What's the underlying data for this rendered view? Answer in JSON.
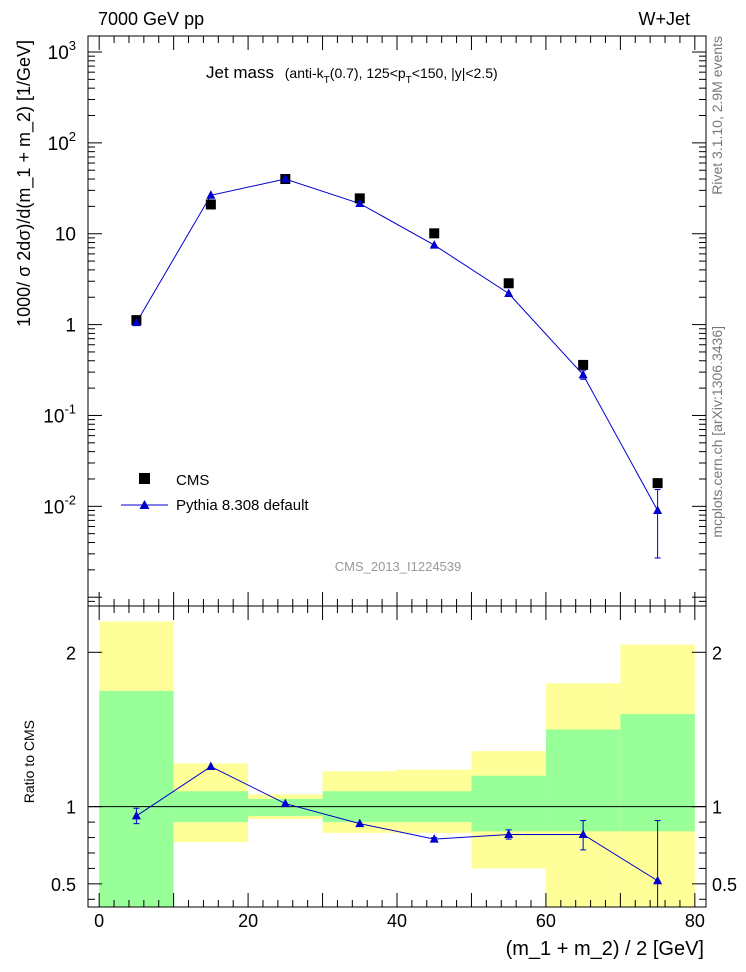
{
  "header": {
    "left": "7000 GeV pp",
    "right": "W+Jet"
  },
  "side_labels": {
    "top": "Rivet 3.1.10,  2.9M events",
    "bottom": "mcplots.cern.ch [arXiv:1306.3436]"
  },
  "analysis_id": "CMS_2013_I1224539",
  "title": {
    "main": "Jet mass",
    "sub_prefix": "(anti-k",
    "sub_T1": "T",
    "sub_mid": "(0.7), 125<p",
    "sub_T2": "T",
    "sub_suffix": "<150, |y|<2.5)"
  },
  "legend": [
    {
      "label": "CMS"
    },
    {
      "label": "Pythia 8.308 default"
    }
  ],
  "colors": {
    "data": "#000000",
    "mc": "#0000cc",
    "band_inner": "#99ff99",
    "band_outer": "#ffff99"
  },
  "chart_data": [
    {
      "type": "scatter",
      "ylabel": "1000/ σ 2dσ)/d(m_1 + m_2) [1/GeV]",
      "xlabel": "",
      "log_y": true,
      "xlim": [
        -1.5,
        81.5
      ],
      "ylim": [
        0.0008,
        1500
      ],
      "y_ticks": [
        "10^-2",
        "10^-1",
        "1",
        "10",
        "10^2",
        "10^3"
      ],
      "x": [
        5,
        15,
        25,
        35,
        45,
        55,
        65,
        75
      ],
      "series": [
        {
          "name": "CMS",
          "values": [
            1.12,
            21,
            40,
            24.5,
            10.1,
            2.85,
            0.36,
            0.018
          ]
        },
        {
          "name": "Pythia 8.308 default",
          "values": [
            1.05,
            26.5,
            40,
            21.5,
            7.5,
            2.2,
            0.28,
            0.009
          ],
          "errors_low": [
            0.05,
            0.5,
            0.5,
            0.4,
            0.2,
            0.08,
            0.03,
            0.0063
          ],
          "errors_high": [
            0.05,
            0.5,
            0.5,
            0.4,
            0.2,
            0.08,
            0.03,
            0.0063
          ]
        }
      ]
    },
    {
      "type": "line",
      "ylabel": "Ratio to CMS",
      "xlabel": "(m_1 + m_2) / 2 [GeV]",
      "xlim": [
        -1.5,
        81.5
      ],
      "ylim": [
        0.35,
        2.3
      ],
      "x_ticks": [
        0,
        20,
        40,
        60,
        80
      ],
      "y_ticks": [
        0.5,
        1,
        2
      ],
      "bins": [
        [
          0,
          10
        ],
        [
          10,
          20
        ],
        [
          20,
          30
        ],
        [
          30,
          40
        ],
        [
          40,
          50
        ],
        [
          50,
          60
        ],
        [
          60,
          70
        ],
        [
          70,
          80
        ]
      ],
      "band_inner": [
        [
          0.35,
          1.75
        ],
        [
          0.9,
          1.1
        ],
        [
          0.94,
          1.05
        ],
        [
          0.9,
          1.1
        ],
        [
          0.9,
          1.1
        ],
        [
          0.84,
          1.2
        ],
        [
          0.84,
          1.5
        ],
        [
          0.84,
          1.6
        ]
      ],
      "band_outer": [
        [
          0.35,
          2.2
        ],
        [
          0.77,
          1.28
        ],
        [
          0.92,
          1.08
        ],
        [
          0.83,
          1.23
        ],
        [
          0.83,
          1.24
        ],
        [
          0.6,
          1.36
        ],
        [
          0.35,
          1.8
        ],
        [
          0.35,
          2.05
        ]
      ],
      "x": [
        5,
        15,
        25,
        35,
        45,
        55,
        65,
        75
      ],
      "series": [
        {
          "name": "Pythia 8.308 default",
          "values": [
            0.94,
            1.26,
            1.02,
            0.89,
            0.79,
            0.82,
            0.82,
            0.52
          ],
          "errors_low": [
            0.05,
            0.0,
            0.0,
            0.0,
            0.01,
            0.03,
            0.1,
            0.37
          ],
          "errors_high": [
            0.05,
            0.0,
            0.0,
            0.0,
            0.01,
            0.03,
            0.09,
            0.39
          ]
        }
      ]
    }
  ]
}
